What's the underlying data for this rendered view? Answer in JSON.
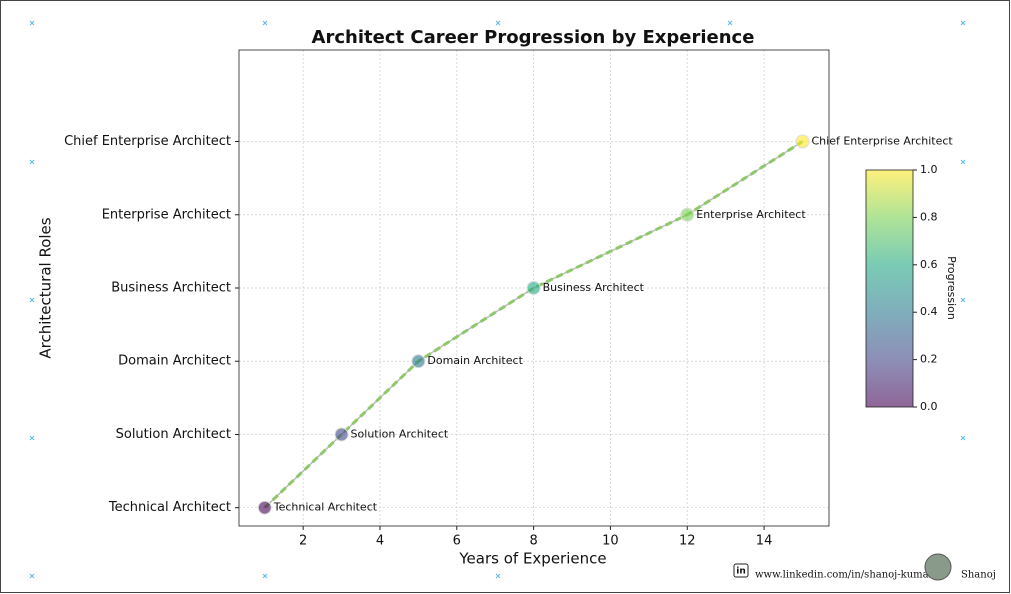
{
  "chart_data": {
    "type": "line",
    "title": "Architect Career Progression by Experience",
    "xlabel": "Years of Experience",
    "ylabel": "Architectural Roles",
    "y_categories": [
      "Technical Architect",
      "Solution Architect",
      "Domain Architect",
      "Business Architect",
      "Enterprise Architect",
      "Chief Enterprise Architect"
    ],
    "x": [
      1,
      3,
      5,
      8,
      12,
      15
    ],
    "progression": [
      0,
      0.2,
      0.4,
      0.6,
      0.8,
      1
    ],
    "colormap": "viridis",
    "line_color": "#bbbbbb",
    "dash_color": "#8fc86a",
    "xlim": [
      0.33,
      15.69
    ],
    "xticks": [
      2,
      4,
      6,
      8,
      10,
      12,
      14
    ],
    "grid": true,
    "colorbar": {
      "label": "Progression",
      "lim": [
        0,
        1
      ],
      "ticks": [
        {
          "value": 0,
          "label": "0.0"
        },
        {
          "value": 0.2,
          "label": "0.2"
        },
        {
          "value": 0.4,
          "label": "0.4"
        },
        {
          "value": 0.6,
          "label": "0.6"
        },
        {
          "value": 0.8,
          "label": "0.8"
        },
        {
          "value": 1,
          "label": "1.0"
        }
      ]
    },
    "footer": {
      "link": "www.linkedin.com/in/shanoj-kumar",
      "name": "Shanoj"
    }
  }
}
